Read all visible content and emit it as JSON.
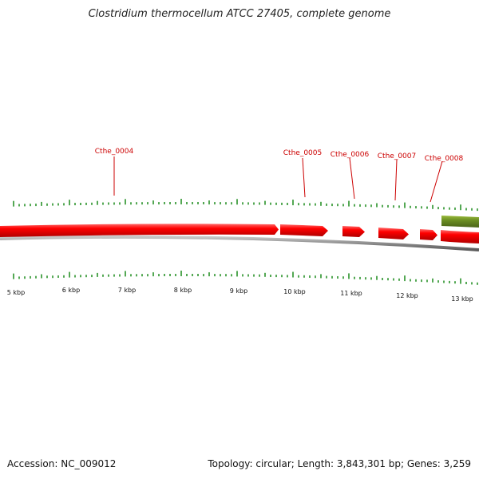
{
  "title": "Clostridium thermocellum ATCC 27405, complete genome",
  "footer": {
    "accession": "Accession: NC_009012",
    "summary": "Topology: circular; Length: 3,843,301 bp; Genes: 3,259"
  },
  "colors": {
    "gene_forward": "#ff0000",
    "gene_other": "#6b8e23",
    "backbone": "#8c8c8c",
    "tick": "#1a8a1a",
    "label": "#cc0000"
  },
  "genes": [
    {
      "name": "Cthe_0004"
    },
    {
      "name": "Cthe_0005"
    },
    {
      "name": "Cthe_0006"
    },
    {
      "name": "Cthe_0007"
    },
    {
      "name": "Cthe_0008"
    }
  ],
  "scale_labels": [
    "5 kbp",
    "6 kbp",
    "7 kbp",
    "8 kbp",
    "9 kbp",
    "10 kbp",
    "11 kbp",
    "12 kbp",
    "13 kbp"
  ]
}
